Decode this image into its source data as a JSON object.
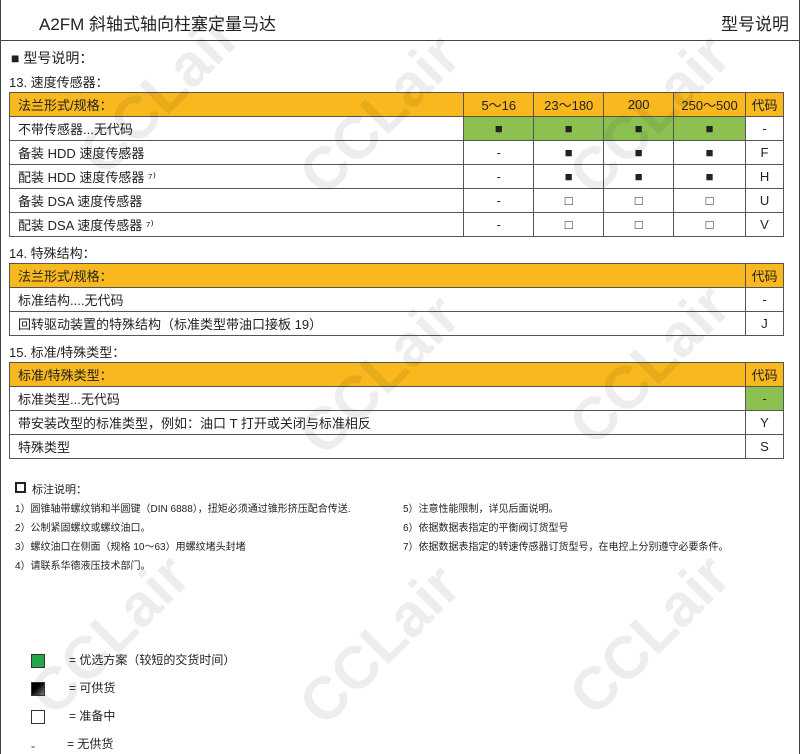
{
  "header": {
    "title": "A2FM 斜轴式轴向柱塞定量马达",
    "right": "型号说明"
  },
  "section_title": "■  型号说明：",
  "s13": {
    "label": "13. 速度传感器：",
    "head": [
      "法兰形式/规格：",
      "5～16",
      "23～180",
      "200",
      "250～500",
      "代码"
    ],
    "rows": [
      {
        "cells": [
          "不带传感器...无代码",
          "■",
          "■",
          "■",
          "■",
          "-"
        ],
        "green": true
      },
      {
        "cells": [
          "备装 HDD 速度传感器",
          "-",
          "■",
          "■",
          "■",
          "F"
        ]
      },
      {
        "cells": [
          "配装 HDD 速度传感器 ⁷⁾",
          "-",
          "■",
          "■",
          "■",
          "H"
        ]
      },
      {
        "cells": [
          "备装 DSA 速度传感器",
          "-",
          "□",
          "□",
          "□",
          "U"
        ]
      },
      {
        "cells": [
          "配装 DSA 速度传感器 ⁷⁾",
          "-",
          "□",
          "□",
          "□",
          "V"
        ]
      }
    ]
  },
  "s14": {
    "label": "14. 特殊结构：",
    "head": [
      "法兰形式/规格：",
      "代码"
    ],
    "rows": [
      {
        "cells": [
          "标准结构....无代码",
          "-"
        ]
      },
      {
        "cells": [
          "回转驱动装置的特殊结构（标准类型带油口接板 19）",
          "J"
        ]
      }
    ]
  },
  "s15": {
    "label": "15. 标准/特殊类型：",
    "head": [
      "标准/特殊类型：",
      "代码"
    ],
    "rows": [
      {
        "cells": [
          "标准类型...无代码",
          "-"
        ],
        "greenLast": true
      },
      {
        "cells": [
          "带安装改型的标准类型，例如：油口 T 打开或关闭与标准相反",
          "Y"
        ]
      },
      {
        "cells": [
          "特殊类型",
          "S"
        ]
      }
    ]
  },
  "notes": {
    "title": "标注说明：",
    "left": [
      "1）圆锥轴带螺纹销和半圆键（DIN 6888），扭矩必须通过锥形挤压配合传送.",
      "2）公制紧固螺纹或螺纹油口。",
      "3）螺纹油口在侧面（规格 10～63）用螺纹堵头封堵",
      "4）请联系华德液压技术部门。"
    ],
    "right": [
      "5）注意性能限制，详见后面说明。",
      "6）依据数据表指定的平衡阀订货型号",
      "7）依据数据表指定的转速传感器订货型号，在电控上分别遵守必要条件。"
    ]
  },
  "legend": [
    {
      "sym": "green",
      "text": "= 优选方案（较短的交货时间）"
    },
    {
      "sym": "black",
      "text": "= 可供货"
    },
    {
      "sym": "white",
      "text": "= 准备中"
    },
    {
      "sym": "-",
      "text": "= 无供货"
    }
  ],
  "watermark": "CCLair",
  "colors": {
    "header": "#f8b81e",
    "preferred": "#8cc152",
    "legend_green": "#22a84a"
  }
}
